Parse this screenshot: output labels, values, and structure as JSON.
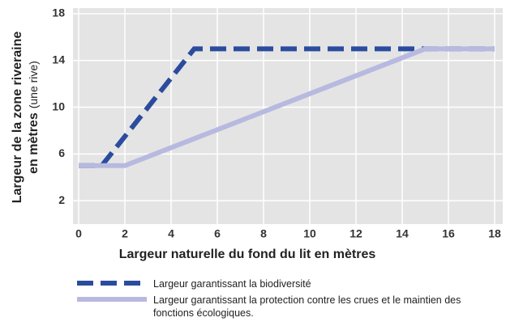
{
  "chart_data": {
    "type": "line",
    "y_label": [
      "Largeur de la zone riveraine",
      "en mètres"
    ],
    "y_label_note": "(une rive)",
    "x_label": "Largeur naturelle du fond du lit en mètres",
    "xlim": [
      0,
      18
    ],
    "xticks": [
      0,
      2,
      4,
      6,
      8,
      10,
      12,
      14,
      16,
      18
    ],
    "ylim": [
      0,
      18
    ],
    "yticks": [
      2,
      6,
      10,
      14,
      18
    ],
    "grid": true,
    "series": [
      {
        "name": "Largeur garantissant la biodiversité",
        "color": "#2b4c9e",
        "dashed": true,
        "x": [
          0,
          1,
          5,
          18
        ],
        "values": [
          5,
          5,
          15,
          15
        ]
      },
      {
        "name": "Largeur garantissant la protection contre les crues et le maintien des fonctions écologiques.",
        "color": "#b8b9e0",
        "dashed": false,
        "x": [
          0,
          2,
          15,
          18
        ],
        "values": [
          5,
          5,
          15,
          15
        ]
      }
    ]
  }
}
